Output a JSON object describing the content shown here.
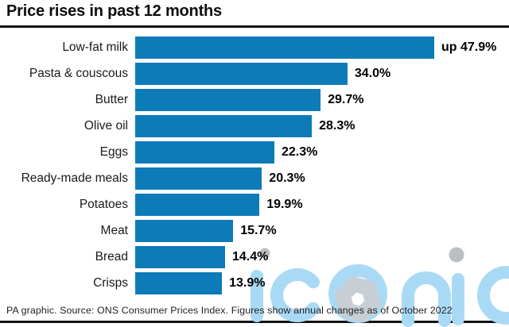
{
  "header": {
    "title": "Price rises in past 12 months"
  },
  "chart_data": {
    "type": "bar",
    "orientation": "horizontal",
    "title": "Price rises in past 12 months",
    "categories": [
      "Low-fat milk",
      "Pasta & couscous",
      "Butter",
      "Olive oil",
      "Eggs",
      "Ready-made meals",
      "Potatoes",
      "Meat",
      "Bread",
      "Crisps"
    ],
    "values": [
      47.9,
      34.0,
      29.7,
      28.3,
      22.3,
      20.3,
      19.9,
      15.7,
      14.4,
      13.9
    ],
    "value_labels": [
      "up 47.9%",
      "34.0%",
      "29.7%",
      "28.3%",
      "22.3%",
      "20.3%",
      "19.9%",
      "15.7%",
      "14.4%",
      "13.9%"
    ],
    "unit": "%",
    "xlim": [
      0,
      50
    ],
    "grid": false,
    "legend": false,
    "bar_color": "#0e7bb9"
  },
  "footer": {
    "source": "PA graphic. Source: ONS Consumer Prices Index. Figures show annual changes as of October 2022"
  },
  "watermark": {
    "text": "iconic",
    "letter_color": "#a9daf5",
    "dot_color": "#bcbfc2",
    "hex_color": "#c7ced4"
  }
}
